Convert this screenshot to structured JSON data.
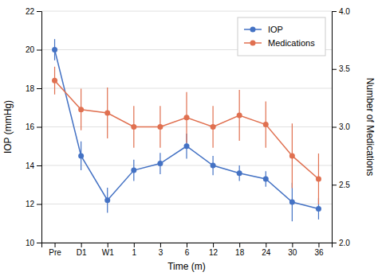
{
  "chart_data": {
    "type": "line",
    "xlabel": "Time (m)",
    "ylabel": "IOP (mmHg)",
    "y2label": "Number of Medications",
    "categories": [
      "Pre",
      "D1",
      "W1",
      "1",
      "3",
      "6",
      "12",
      "18",
      "24",
      "30",
      "36"
    ],
    "series": [
      {
        "name": "IOP",
        "color": "#4472C4",
        "marker": "circle",
        "values": [
          20.0,
          14.5,
          12.2,
          13.75,
          14.1,
          15.0,
          14.0,
          13.6,
          13.3,
          12.1,
          11.75
        ],
        "errors": [
          0.55,
          0.75,
          0.65,
          0.55,
          0.55,
          0.65,
          0.5,
          0.4,
          0.4,
          1.0,
          0.55
        ]
      },
      {
        "name": "Medications",
        "color": "#E07050",
        "marker": "circle",
        "axis": "y2",
        "values": [
          3.4,
          3.15,
          3.12,
          3.0,
          3.0,
          3.08,
          3.0,
          3.1,
          3.02,
          2.75,
          2.55
        ],
        "errors": [
          0.12,
          0.18,
          0.22,
          0.18,
          0.18,
          0.22,
          0.18,
          0.22,
          0.2,
          0.28,
          0.22
        ]
      }
    ],
    "ylim": [
      10,
      22
    ],
    "yticks": [
      10,
      12,
      14,
      16,
      18,
      20,
      22
    ],
    "y2lim": [
      2.0,
      4.0
    ],
    "y2ticks": [
      {
        "value": 2.0,
        "label": "2.0"
      },
      2.5,
      {
        "value": 3.0,
        "label": "3.0"
      },
      3.5,
      {
        "value": 4.0,
        "label": "4.0"
      }
    ],
    "grid": true,
    "legend": "upper right"
  }
}
